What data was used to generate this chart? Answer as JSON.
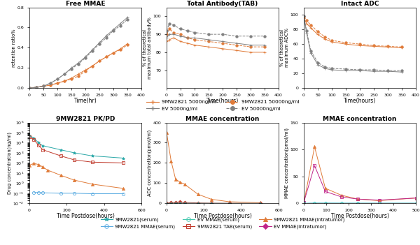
{
  "top_free_mmae": {
    "title": "Free MMAE",
    "xlabel": "Time(hr)",
    "ylabel": "retention ratio%",
    "xlim": [
      0,
      400
    ],
    "ylim": [
      0.0,
      0.8
    ],
    "yticks": [
      0.0,
      0.2,
      0.4,
      0.6,
      0.8
    ],
    "series": [
      {
        "x": [
          0,
          25,
          50,
          75,
          100,
          125,
          150,
          175,
          200,
          225,
          250,
          275,
          300,
          325,
          350
        ],
        "y": [
          0.0,
          0.01,
          0.02,
          0.03,
          0.05,
          0.07,
          0.1,
          0.14,
          0.18,
          0.22,
          0.27,
          0.31,
          0.35,
          0.39,
          0.44
        ],
        "color": "#E07B39",
        "style": "-",
        "marker": "+",
        "ms": 2.5
      },
      {
        "x": [
          0,
          25,
          50,
          75,
          100,
          125,
          150,
          175,
          200,
          225,
          250,
          275,
          300,
          325,
          350
        ],
        "y": [
          0.0,
          0.01,
          0.02,
          0.03,
          0.05,
          0.07,
          0.09,
          0.12,
          0.17,
          0.22,
          0.27,
          0.31,
          0.35,
          0.38,
          0.43
        ],
        "color": "#E07B39",
        "style": "--",
        "marker": "o",
        "ms": 2.5
      },
      {
        "x": [
          0,
          25,
          50,
          75,
          100,
          125,
          150,
          175,
          200,
          225,
          250,
          275,
          300,
          325,
          350
        ],
        "y": [
          0.0,
          0.01,
          0.02,
          0.05,
          0.09,
          0.14,
          0.2,
          0.25,
          0.31,
          0.38,
          0.45,
          0.52,
          0.58,
          0.64,
          0.7
        ],
        "color": "#808080",
        "style": "-",
        "marker": "+",
        "ms": 2.5
      },
      {
        "x": [
          0,
          25,
          50,
          75,
          100,
          125,
          150,
          175,
          200,
          225,
          250,
          275,
          300,
          325,
          350
        ],
        "y": [
          0.0,
          0.01,
          0.02,
          0.05,
          0.09,
          0.14,
          0.19,
          0.24,
          0.3,
          0.37,
          0.44,
          0.5,
          0.57,
          0.62,
          0.68
        ],
        "color": "#808080",
        "style": "--",
        "marker": "o",
        "ms": 2.5
      }
    ]
  },
  "top_total_antibody": {
    "title": "Total Antibody(TAB)",
    "xlabel": "Time(hours)",
    "ylabel": "% of theoretical\nmaximum total antibody%",
    "xlim": [
      0,
      400
    ],
    "ylim": [
      60,
      105
    ],
    "yticks": [
      70,
      80,
      90,
      100
    ],
    "series": [
      {
        "x": [
          0,
          10,
          25,
          50,
          75,
          100,
          150,
          200,
          250,
          300,
          350
        ],
        "y": [
          86,
          87,
          88,
          86,
          85,
          84,
          83,
          82,
          81,
          80,
          80
        ],
        "color": "#E07B39",
        "style": "-",
        "marker": "+",
        "ms": 2.5
      },
      {
        "x": [
          0,
          10,
          25,
          50,
          75,
          100,
          150,
          200,
          250,
          300,
          350
        ],
        "y": [
          90,
          93,
          91,
          90,
          88,
          87,
          86,
          85,
          84,
          83,
          83
        ],
        "color": "#E07B39",
        "style": "--",
        "marker": "o",
        "ms": 2.5
      },
      {
        "x": [
          0,
          10,
          25,
          50,
          75,
          100,
          150,
          200,
          250,
          300,
          350
        ],
        "y": [
          88,
          90,
          90,
          89,
          88,
          88,
          87,
          86,
          85,
          84,
          84
        ],
        "color": "#808080",
        "style": "-",
        "marker": "+",
        "ms": 2.5
      },
      {
        "x": [
          0,
          10,
          25,
          50,
          75,
          100,
          150,
          200,
          250,
          300,
          350
        ],
        "y": [
          92,
          96,
          95,
          93,
          92,
          91,
          90,
          90,
          89,
          89,
          89
        ],
        "color": "#808080",
        "style": "--",
        "marker": "o",
        "ms": 2.5
      }
    ]
  },
  "top_intact_adc": {
    "title": "Intact ADC",
    "xlabel": "Time(hours)",
    "ylabel": "% of theoretical\nmaximum ADC%",
    "xlim": [
      0,
      400
    ],
    "ylim": [
      0,
      110
    ],
    "yticks": [
      0,
      20,
      40,
      60,
      80,
      100
    ],
    "series": [
      {
        "x": [
          0,
          10,
          25,
          50,
          75,
          100,
          150,
          200,
          250,
          300,
          350
        ],
        "y": [
          95,
          88,
          82,
          73,
          67,
          63,
          60,
          58,
          57,
          56,
          55
        ],
        "color": "#E07B39",
        "style": "-",
        "marker": "+",
        "ms": 2.5
      },
      {
        "x": [
          0,
          10,
          25,
          50,
          75,
          100,
          150,
          200,
          250,
          300,
          350
        ],
        "y": [
          97,
          92,
          86,
          77,
          70,
          65,
          62,
          60,
          58,
          57,
          56
        ],
        "color": "#E07B39",
        "style": "--",
        "marker": "o",
        "ms": 2.5
      },
      {
        "x": [
          0,
          10,
          25,
          50,
          75,
          100,
          150,
          200,
          250,
          300,
          350
        ],
        "y": [
          98,
          75,
          48,
          32,
          27,
          25,
          24,
          24,
          23,
          23,
          22
        ],
        "color": "#808080",
        "style": "-",
        "marker": "+",
        "ms": 2.5
      },
      {
        "x": [
          0,
          10,
          25,
          50,
          75,
          100,
          150,
          200,
          250,
          300,
          350
        ],
        "y": [
          98,
          78,
          51,
          35,
          29,
          27,
          26,
          25,
          25,
          24,
          24
        ],
        "color": "#808080",
        "style": "--",
        "marker": "o",
        "ms": 2.5
      }
    ]
  },
  "top_legend": [
    {
      "label": "9MW2821 5000ng/ml",
      "color": "#E07B39",
      "style": "-",
      "marker": "+"
    },
    {
      "label": "EV 5000ng/ml",
      "color": "#808080",
      "style": "-",
      "marker": "+"
    },
    {
      "label": "9MW2821 50000ng/ml",
      "color": "#E07B39",
      "style": "--",
      "marker": "o"
    },
    {
      "label": "EV 50000ng/ml",
      "color": "#808080",
      "style": "--",
      "marker": "o"
    }
  ],
  "bot_pkpd": {
    "title": "9MW2821 PK/PD",
    "xlabel": "Time Postdose(hours)",
    "ylabel": "Drug concentration(ng/ml)",
    "xlim": [
      0,
      600
    ],
    "xticks": [
      0,
      200,
      400,
      600
    ],
    "series": [
      {
        "x": [
          0,
          24,
          48,
          72,
          168,
          240,
          336,
          504
        ],
        "y": [
          50000,
          30000,
          10000,
          5000,
          2000,
          1000,
          500,
          300
        ],
        "color": "#2BA8A8",
        "style": "-",
        "marker": "*",
        "ms": 3,
        "mfc": "#2BA8A8"
      },
      {
        "x": [
          0,
          24,
          48,
          72,
          168,
          240,
          336,
          504
        ],
        "y": [
          40000,
          20000,
          6000,
          2000,
          500,
          200,
          120,
          100
        ],
        "color": "#C0392B",
        "style": "-",
        "marker": "s",
        "ms": 3,
        "mfc": "none"
      },
      {
        "x": [
          24,
          48,
          72,
          168,
          240,
          336,
          504
        ],
        "y": [
          0.12,
          0.12,
          0.11,
          0.1,
          0.1,
          0.09,
          0.09
        ],
        "color": "#5DADE2",
        "style": "-",
        "marker": "o",
        "ms": 3,
        "mfc": "none"
      },
      {
        "x": [
          0,
          24,
          48,
          72,
          96,
          168,
          240,
          336,
          504
        ],
        "y": [
          60,
          90,
          70,
          40,
          20,
          6,
          2,
          0.8,
          0.3
        ],
        "color": "#E07B39",
        "style": "-",
        "marker": "^",
        "ms": 3,
        "mfc": "#E07B39"
      }
    ]
  },
  "bot_mmae_adc": {
    "title": "MMAE concentration",
    "xlabel": "Time Postdose(hours)",
    "ylabel": "ADC concentration(pmol/ml)",
    "xlim": [
      0,
      600
    ],
    "xticks": [
      0,
      200,
      400,
      600
    ],
    "ylim": [
      0,
      400
    ],
    "yticks": [
      0,
      100,
      200,
      300,
      400
    ],
    "series": [
      {
        "x": [
          0,
          24,
          48,
          72,
          96,
          168,
          240,
          336,
          504
        ],
        "y": [
          350,
          210,
          120,
          105,
          95,
          45,
          20,
          8,
          3
        ],
        "color": "#E07B39",
        "style": "-",
        "marker": "^",
        "ms": 3,
        "mfc": "#E07B39"
      },
      {
        "x": [
          0,
          24,
          48,
          72,
          96,
          168,
          240,
          336,
          504
        ],
        "y": [
          0,
          3,
          5,
          7,
          5,
          2,
          1,
          0.5,
          0.2
        ],
        "color": "#C0392B",
        "style": "-",
        "marker": "D",
        "ms": 2.5,
        "mfc": "#C0392B"
      },
      {
        "x": [
          0,
          24,
          48,
          72,
          96,
          168,
          240,
          336,
          504
        ],
        "y": [
          0,
          0.5,
          0.8,
          1,
          0.8,
          0.4,
          0.2,
          0.1,
          0.05
        ],
        "color": "#2BA8A8",
        "style": "-",
        "marker": "+",
        "ms": 2.5,
        "mfc": "#2BA8A8"
      }
    ]
  },
  "bot_mmae_pmol": {
    "title": "MMAE concentration",
    "xlabel": "Time Postdose(hours)",
    "ylabel": "MMAE concentration(pmol/ml)",
    "xlim": [
      0,
      500
    ],
    "xticks": [
      0,
      100,
      200,
      300,
      400,
      500
    ],
    "ylim": [
      0,
      150
    ],
    "yticks": [
      0,
      50,
      100,
      150
    ],
    "series": [
      {
        "x": [
          0,
          48,
          96,
          168,
          240,
          336,
          504
        ],
        "y": [
          0,
          105,
          28,
          15,
          8,
          5,
          10
        ],
        "color": "#E07B39",
        "style": "-",
        "marker": "^",
        "ms": 3,
        "mfc": "#E07B39"
      },
      {
        "x": [
          0,
          48,
          96,
          168,
          240,
          336,
          504
        ],
        "y": [
          2,
          70,
          22,
          12,
          8,
          6,
          10
        ],
        "color": "#C0258A",
        "style": "-",
        "marker": "s",
        "ms": 3,
        "mfc": "none"
      },
      {
        "x": [
          0,
          48,
          96,
          168,
          240,
          336,
          504
        ],
        "y": [
          0,
          0.5,
          0.5,
          0.4,
          0.3,
          0.3,
          0.3
        ],
        "color": "#5DADE2",
        "style": "-",
        "marker": "o",
        "ms": 2.5,
        "mfc": "none"
      },
      {
        "x": [
          0,
          48,
          96,
          168,
          240,
          336,
          504
        ],
        "y": [
          0,
          0.3,
          0.3,
          0.2,
          0.2,
          0.2,
          0.2
        ],
        "color": "#48C9B0",
        "style": "-",
        "marker": "o",
        "ms": 2.5,
        "mfc": "none"
      }
    ]
  },
  "bot_legend": [
    {
      "label": "9MW2821(serum)",
      "color": "#2BA8A8",
      "marker": "*",
      "mfc": "#2BA8A8"
    },
    {
      "label": "9MW2821 MMAE(serum)",
      "color": "#5DADE2",
      "marker": "o",
      "mfc": "none"
    },
    {
      "label": "EV MMAE(serum)",
      "color": "#48C9B0",
      "marker": "o",
      "mfc": "none"
    },
    {
      "label": "9MW2821 TAB(serum)",
      "color": "#C0392B",
      "marker": "s",
      "mfc": "none"
    },
    {
      "label": "9MW2821 MMAE(intratumor)",
      "color": "#E07B39",
      "marker": "^",
      "mfc": "#E07B39"
    },
    {
      "label": "EV MMAE(intratumor)",
      "color": "#C0258A",
      "marker": "D",
      "mfc": "#C0258A"
    }
  ]
}
